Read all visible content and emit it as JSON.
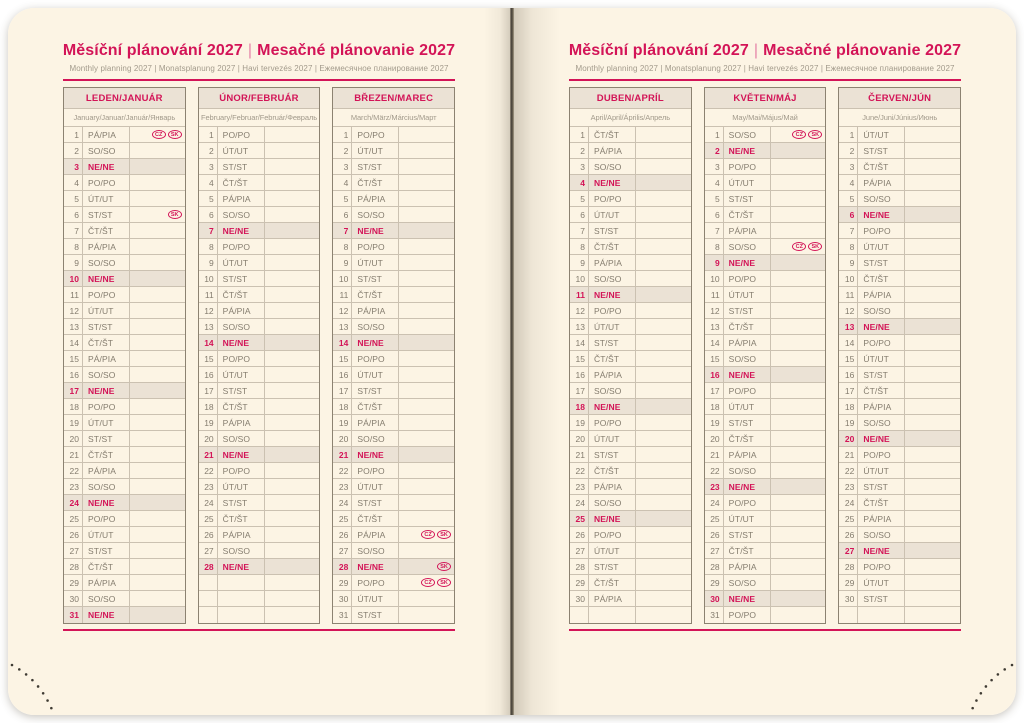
{
  "header": {
    "title_cs": "Měsíční plánování 2027",
    "separator": "|",
    "title_sk": "Mesačné plánovanie 2027",
    "subtitle": "Monthly planning 2027 | Monatsplanung 2027 | Havi tervezés 2027 | Ежемесячное планирование 2027"
  },
  "colors": {
    "accent": "#d31457",
    "page_bg": "#fcf4e4",
    "sunday_row_bg": "#ebe2d5",
    "day_text": "#847c6e",
    "inner_line": "#cbc1b1",
    "outer_line": "#8c8271"
  },
  "holiday_badges": {
    "cz": "CZ",
    "sk": "SK"
  },
  "months": [
    {
      "name": "LEDEN/JANUÁR",
      "subname": "January/Januar/Január/Январь",
      "side": "left",
      "days": [
        [
          1,
          "PÁ/PIA",
          0,
          [
            "CZ",
            "SK"
          ]
        ],
        [
          2,
          "SO/SO"
        ],
        [
          3,
          "NE/NE",
          1
        ],
        [
          4,
          "PO/PO"
        ],
        [
          5,
          "ÚT/UT"
        ],
        [
          6,
          "ST/ST",
          0,
          [
            "SK"
          ]
        ],
        [
          7,
          "ČT/ŠT"
        ],
        [
          8,
          "PÁ/PIA"
        ],
        [
          9,
          "SO/SO"
        ],
        [
          10,
          "NE/NE",
          1
        ],
        [
          11,
          "PO/PO"
        ],
        [
          12,
          "ÚT/UT"
        ],
        [
          13,
          "ST/ST"
        ],
        [
          14,
          "ČT/ŠT"
        ],
        [
          15,
          "PÁ/PIA"
        ],
        [
          16,
          "SO/SO"
        ],
        [
          17,
          "NE/NE",
          1
        ],
        [
          18,
          "PO/PO"
        ],
        [
          19,
          "ÚT/UT"
        ],
        [
          20,
          "ST/ST"
        ],
        [
          21,
          "ČT/ŠT"
        ],
        [
          22,
          "PÁ/PIA"
        ],
        [
          23,
          "SO/SO"
        ],
        [
          24,
          "NE/NE",
          1
        ],
        [
          25,
          "PO/PO"
        ],
        [
          26,
          "ÚT/UT"
        ],
        [
          27,
          "ST/ST"
        ],
        [
          28,
          "ČT/ŠT"
        ],
        [
          29,
          "PÁ/PIA"
        ],
        [
          30,
          "SO/SO"
        ],
        [
          31,
          "NE/NE",
          1
        ]
      ]
    },
    {
      "name": "ÚNOR/FEBRUÁR",
      "subname": "February/Februar/Február/Февраль",
      "side": "left",
      "days": [
        [
          1,
          "PO/PO"
        ],
        [
          2,
          "ÚT/UT"
        ],
        [
          3,
          "ST/ST"
        ],
        [
          4,
          "ČT/ŠT"
        ],
        [
          5,
          "PÁ/PIA"
        ],
        [
          6,
          "SO/SO"
        ],
        [
          7,
          "NE/NE",
          1
        ],
        [
          8,
          "PO/PO"
        ],
        [
          9,
          "ÚT/UT"
        ],
        [
          10,
          "ST/ST"
        ],
        [
          11,
          "ČT/ŠT"
        ],
        [
          12,
          "PÁ/PIA"
        ],
        [
          13,
          "SO/SO"
        ],
        [
          14,
          "NE/NE",
          1
        ],
        [
          15,
          "PO/PO"
        ],
        [
          16,
          "ÚT/UT"
        ],
        [
          17,
          "ST/ST"
        ],
        [
          18,
          "ČT/ŠT"
        ],
        [
          19,
          "PÁ/PIA"
        ],
        [
          20,
          "SO/SO"
        ],
        [
          21,
          "NE/NE",
          1
        ],
        [
          22,
          "PO/PO"
        ],
        [
          23,
          "ÚT/UT"
        ],
        [
          24,
          "ST/ST"
        ],
        [
          25,
          "ČT/ŠT"
        ],
        [
          26,
          "PÁ/PIA"
        ],
        [
          27,
          "SO/SO"
        ],
        [
          28,
          "NE/NE",
          1
        ],
        [],
        [],
        []
      ]
    },
    {
      "name": "BŘEZEN/MAREC",
      "subname": "March/März/Március/Март",
      "side": "left",
      "days": [
        [
          1,
          "PO/PO"
        ],
        [
          2,
          "ÚT/UT"
        ],
        [
          3,
          "ST/ST"
        ],
        [
          4,
          "ČT/ŠT"
        ],
        [
          5,
          "PÁ/PIA"
        ],
        [
          6,
          "SO/SO"
        ],
        [
          7,
          "NE/NE",
          1
        ],
        [
          8,
          "PO/PO"
        ],
        [
          9,
          "ÚT/UT"
        ],
        [
          10,
          "ST/ST"
        ],
        [
          11,
          "ČT/ŠT"
        ],
        [
          12,
          "PÁ/PIA"
        ],
        [
          13,
          "SO/SO"
        ],
        [
          14,
          "NE/NE",
          1
        ],
        [
          15,
          "PO/PO"
        ],
        [
          16,
          "ÚT/UT"
        ],
        [
          17,
          "ST/ST"
        ],
        [
          18,
          "ČT/ŠT"
        ],
        [
          19,
          "PÁ/PIA"
        ],
        [
          20,
          "SO/SO"
        ],
        [
          21,
          "NE/NE",
          1
        ],
        [
          22,
          "PO/PO"
        ],
        [
          23,
          "ÚT/UT"
        ],
        [
          24,
          "ST/ST"
        ],
        [
          25,
          "ČT/ŠT"
        ],
        [
          26,
          "PÁ/PIA",
          0,
          [
            "CZ",
            "SK"
          ]
        ],
        [
          27,
          "SO/SO"
        ],
        [
          28,
          "NE/NE",
          1,
          [
            "SK"
          ]
        ],
        [
          29,
          "PO/PO",
          0,
          [
            "CZ",
            "SK"
          ]
        ],
        [
          30,
          "ÚT/UT"
        ],
        [
          31,
          "ST/ST"
        ]
      ]
    },
    {
      "name": "DUBEN/APRÍL",
      "subname": "April/April/Április/Апрель",
      "side": "right",
      "days": [
        [
          1,
          "ČT/ŠT"
        ],
        [
          2,
          "PÁ/PIA"
        ],
        [
          3,
          "SO/SO"
        ],
        [
          4,
          "NE/NE",
          1
        ],
        [
          5,
          "PO/PO"
        ],
        [
          6,
          "ÚT/UT"
        ],
        [
          7,
          "ST/ST"
        ],
        [
          8,
          "ČT/ŠT"
        ],
        [
          9,
          "PÁ/PIA"
        ],
        [
          10,
          "SO/SO"
        ],
        [
          11,
          "NE/NE",
          1
        ],
        [
          12,
          "PO/PO"
        ],
        [
          13,
          "ÚT/UT"
        ],
        [
          14,
          "ST/ST"
        ],
        [
          15,
          "ČT/ŠT"
        ],
        [
          16,
          "PÁ/PIA"
        ],
        [
          17,
          "SO/SO"
        ],
        [
          18,
          "NE/NE",
          1
        ],
        [
          19,
          "PO/PO"
        ],
        [
          20,
          "ÚT/UT"
        ],
        [
          21,
          "ST/ST"
        ],
        [
          22,
          "ČT/ŠT"
        ],
        [
          23,
          "PÁ/PIA"
        ],
        [
          24,
          "SO/SO"
        ],
        [
          25,
          "NE/NE",
          1
        ],
        [
          26,
          "PO/PO"
        ],
        [
          27,
          "ÚT/UT"
        ],
        [
          28,
          "ST/ST"
        ],
        [
          29,
          "ČT/ŠT"
        ],
        [
          30,
          "PÁ/PIA"
        ],
        []
      ]
    },
    {
      "name": "KVĚTEN/MÁJ",
      "subname": "May/Mai/Május/Май",
      "side": "right",
      "days": [
        [
          1,
          "SO/SO",
          0,
          [
            "CZ",
            "SK"
          ]
        ],
        [
          2,
          "NE/NE",
          1
        ],
        [
          3,
          "PO/PO"
        ],
        [
          4,
          "ÚT/UT"
        ],
        [
          5,
          "ST/ST"
        ],
        [
          6,
          "ČT/ŠT"
        ],
        [
          7,
          "PÁ/PIA"
        ],
        [
          8,
          "SO/SO",
          0,
          [
            "CZ",
            "SK"
          ]
        ],
        [
          9,
          "NE/NE",
          1
        ],
        [
          10,
          "PO/PO"
        ],
        [
          11,
          "ÚT/UT"
        ],
        [
          12,
          "ST/ST"
        ],
        [
          13,
          "ČT/ŠT"
        ],
        [
          14,
          "PÁ/PIA"
        ],
        [
          15,
          "SO/SO"
        ],
        [
          16,
          "NE/NE",
          1
        ],
        [
          17,
          "PO/PO"
        ],
        [
          18,
          "ÚT/UT"
        ],
        [
          19,
          "ST/ST"
        ],
        [
          20,
          "ČT/ŠT"
        ],
        [
          21,
          "PÁ/PIA"
        ],
        [
          22,
          "SO/SO"
        ],
        [
          23,
          "NE/NE",
          1
        ],
        [
          24,
          "PO/PO"
        ],
        [
          25,
          "ÚT/UT"
        ],
        [
          26,
          "ST/ST"
        ],
        [
          27,
          "ČT/ŠT"
        ],
        [
          28,
          "PÁ/PIA"
        ],
        [
          29,
          "SO/SO"
        ],
        [
          30,
          "NE/NE",
          1
        ],
        [
          31,
          "PO/PO"
        ]
      ]
    },
    {
      "name": "ČERVEN/JÚN",
      "subname": "June/Juni/Június/Июнь",
      "side": "right",
      "days": [
        [
          1,
          "ÚT/UT"
        ],
        [
          2,
          "ST/ST"
        ],
        [
          3,
          "ČT/ŠT"
        ],
        [
          4,
          "PÁ/PIA"
        ],
        [
          5,
          "SO/SO"
        ],
        [
          6,
          "NE/NE",
          1
        ],
        [
          7,
          "PO/PO"
        ],
        [
          8,
          "ÚT/UT"
        ],
        [
          9,
          "ST/ST"
        ],
        [
          10,
          "ČT/ŠT"
        ],
        [
          11,
          "PÁ/PIA"
        ],
        [
          12,
          "SO/SO"
        ],
        [
          13,
          "NE/NE",
          1
        ],
        [
          14,
          "PO/PO"
        ],
        [
          15,
          "ÚT/UT"
        ],
        [
          16,
          "ST/ST"
        ],
        [
          17,
          "ČT/ŠT"
        ],
        [
          18,
          "PÁ/PIA"
        ],
        [
          19,
          "SO/SO"
        ],
        [
          20,
          "NE/NE",
          1
        ],
        [
          21,
          "PO/PO"
        ],
        [
          22,
          "ÚT/UT"
        ],
        [
          23,
          "ST/ST"
        ],
        [
          24,
          "ČT/ŠT"
        ],
        [
          25,
          "PÁ/PIA"
        ],
        [
          26,
          "SO/SO"
        ],
        [
          27,
          "NE/NE",
          1
        ],
        [
          28,
          "PO/PO"
        ],
        [
          29,
          "ÚT/UT"
        ],
        [
          30,
          "ST/ST"
        ],
        []
      ]
    }
  ]
}
